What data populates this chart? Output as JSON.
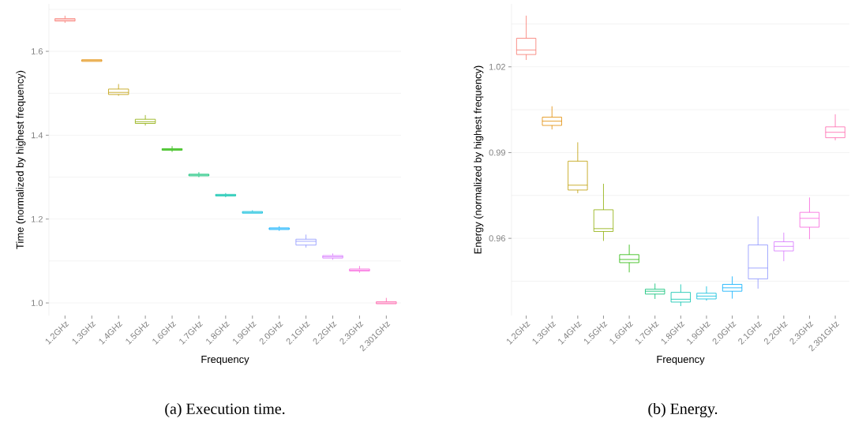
{
  "chart_data": [
    {
      "type": "box",
      "title": "(a) Execution time.",
      "xlabel": "Frequency",
      "ylabel": "Time (normalized by highest frequency)",
      "categories": [
        "1.2GHz",
        "1.3GHz",
        "1.4GHz",
        "1.5GHz",
        "1.6GHz",
        "1.7GHz",
        "1.8GHz",
        "1.9GHz",
        "2.0GHz",
        "2.1GHz",
        "2.2GHz",
        "2.3GHz",
        "2.301GHz"
      ],
      "colors": [
        "#f8766d",
        "#e18a00",
        "#be9c00",
        "#8cab00",
        "#24b700",
        "#00be70",
        "#00c1ab",
        "#00bbda",
        "#00acfc",
        "#8b93ff",
        "#d575fe",
        "#f962dd",
        "#ff65ac"
      ],
      "boxes": [
        {
          "low": 1.668,
          "q1": 1.672,
          "median": 1.675,
          "q3": 1.678,
          "high": 1.685
        },
        {
          "low": 1.576,
          "q1": 1.576,
          "median": 1.578,
          "q3": 1.58,
          "high": 1.58
        },
        {
          "low": 1.494,
          "q1": 1.497,
          "median": 1.502,
          "q3": 1.51,
          "high": 1.522
        },
        {
          "low": 1.423,
          "q1": 1.428,
          "median": 1.432,
          "q3": 1.438,
          "high": 1.448
        },
        {
          "low": 1.36,
          "q1": 1.364,
          "median": 1.366,
          "q3": 1.368,
          "high": 1.374
        },
        {
          "low": 1.3,
          "q1": 1.303,
          "median": 1.305,
          "q3": 1.307,
          "high": 1.312
        },
        {
          "low": 1.252,
          "q1": 1.255,
          "median": 1.257,
          "q3": 1.259,
          "high": 1.262
        },
        {
          "low": 1.214,
          "q1": 1.214,
          "median": 1.216,
          "q3": 1.218,
          "high": 1.221
        },
        {
          "low": 1.172,
          "q1": 1.175,
          "median": 1.177,
          "q3": 1.179,
          "high": 1.183
        },
        {
          "low": 1.132,
          "q1": 1.138,
          "median": 1.147,
          "q3": 1.152,
          "high": 1.163
        },
        {
          "low": 1.103,
          "q1": 1.107,
          "median": 1.11,
          "q3": 1.113,
          "high": 1.118
        },
        {
          "low": 1.072,
          "q1": 1.076,
          "median": 1.078,
          "q3": 1.081,
          "high": 1.088
        },
        {
          "low": 0.998,
          "q1": 0.998,
          "median": 1.0,
          "q3": 1.003,
          "high": 1.012
        }
      ],
      "ylim": [
        0.97,
        1.713
      ],
      "yticks": [
        {
          "value": 1.0,
          "label": "1.0"
        },
        {
          "value": 1.1,
          "label": null
        },
        1.2,
        {
          "value": 1.3,
          "label": null
        },
        1.4,
        {
          "value": 1.5,
          "label": null
        },
        1.6,
        {
          "value": 1.7,
          "label": null
        }
      ],
      "grid": "y"
    },
    {
      "type": "box",
      "title": "(b) Energy.",
      "xlabel": "Frequency",
      "ylabel": "Energy (normalized by highest frequency)",
      "categories": [
        "1.2GHz",
        "1.3GHz",
        "1.4GHz",
        "1.5GHz",
        "1.6GHz",
        "1.7GHz",
        "1.8GHz",
        "1.9GHz",
        "2.0GHz",
        "2.1GHz",
        "2.2GHz",
        "2.3GHz",
        "2.301GHz"
      ],
      "colors": [
        "#f8766d",
        "#e18a00",
        "#be9c00",
        "#8cab00",
        "#24b700",
        "#00be70",
        "#00c1ab",
        "#00bbda",
        "#00acfc",
        "#8b93ff",
        "#d575fe",
        "#f962dd",
        "#ff65ac"
      ],
      "boxes": [
        {
          "low": 1.0224,
          "q1": 1.0243,
          "median": 1.0259,
          "q3": 1.03,
          "high": 1.0379
        },
        {
          "low": 0.9981,
          "q1": 0.9995,
          "median": 1.001,
          "q3": 1.0024,
          "high": 1.0062
        },
        {
          "low": 0.9758,
          "q1": 0.9769,
          "median": 0.9786,
          "q3": 0.987,
          "high": 0.9936
        },
        {
          "low": 0.9591,
          "q1": 0.9624,
          "median": 0.9634,
          "q3": 0.97,
          "high": 0.9791
        },
        {
          "low": 0.9481,
          "q1": 0.9515,
          "median": 0.9526,
          "q3": 0.9543,
          "high": 0.9578
        },
        {
          "low": 0.9388,
          "q1": 0.9405,
          "median": 0.9415,
          "q3": 0.9422,
          "high": 0.9442
        },
        {
          "low": 0.9363,
          "q1": 0.9377,
          "median": 0.9387,
          "q3": 0.9411,
          "high": 0.9439
        },
        {
          "low": 0.9382,
          "q1": 0.9388,
          "median": 0.9398,
          "q3": 0.9408,
          "high": 0.9432
        },
        {
          "low": 0.9389,
          "q1": 0.9415,
          "median": 0.9427,
          "q3": 0.9439,
          "high": 0.9467
        },
        {
          "low": 0.9424,
          "q1": 0.9458,
          "median": 0.9496,
          "q3": 0.9577,
          "high": 0.9677
        },
        {
          "low": 0.952,
          "q1": 0.9556,
          "median": 0.9572,
          "q3": 0.9588,
          "high": 0.962
        },
        {
          "low": 0.9597,
          "q1": 0.9639,
          "median": 0.967,
          "q3": 0.9691,
          "high": 0.9743
        },
        {
          "low": 0.9943,
          "q1": 0.9952,
          "median": 0.9971,
          "q3": 0.999,
          "high": 1.0034
        }
      ],
      "ylim": [
        0.933,
        1.042
      ],
      "yticks": [
        {
          "value": 0.945,
          "label": null
        },
        0.96,
        {
          "value": 0.975,
          "label": null
        },
        0.99,
        {
          "value": 1.005,
          "label": null
        },
        1.02,
        {
          "value": 1.035,
          "label": null
        }
      ],
      "grid": "y"
    }
  ]
}
